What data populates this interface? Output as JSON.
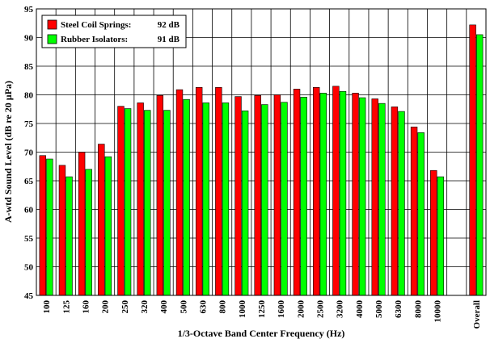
{
  "chart_data": {
    "type": "bar",
    "xlabel": "1/3-Octave Band Center Frequency (Hz)",
    "ylabel": "A-wtd Sound Level (dB re 20 µPa)",
    "ylim": [
      45,
      95
    ],
    "yticks": [
      45,
      50,
      55,
      60,
      65,
      70,
      75,
      80,
      85,
      90,
      95
    ],
    "grid": true,
    "legend_position": "top-left",
    "categories": [
      "100",
      "125",
      "160",
      "200",
      "250",
      "320",
      "400",
      "500",
      "630",
      "800",
      "1000",
      "1250",
      "1600",
      "2000",
      "2500",
      "3200",
      "4000",
      "5000",
      "6300",
      "8000",
      "10000",
      "Overall"
    ],
    "series": [
      {
        "name": "Steel Coil Springs:",
        "legend_value": "92 dB",
        "color": "#ff0000",
        "values": [
          69.4,
          67.7,
          70.0,
          71.4,
          78.0,
          78.6,
          79.9,
          80.9,
          81.3,
          81.3,
          79.7,
          79.9,
          80.0,
          81.0,
          81.3,
          81.5,
          80.3,
          79.3,
          77.9,
          74.4,
          66.8,
          92.2
        ]
      },
      {
        "name": "Rubber Isolators:",
        "legend_value": "91 dB",
        "color": "#00ff00",
        "values": [
          68.8,
          65.7,
          67.0,
          69.2,
          77.6,
          77.3,
          77.3,
          79.2,
          78.6,
          78.6,
          77.2,
          78.3,
          78.7,
          79.6,
          80.3,
          80.6,
          79.5,
          78.5,
          77.1,
          73.4,
          65.7,
          90.5
        ]
      }
    ]
  }
}
